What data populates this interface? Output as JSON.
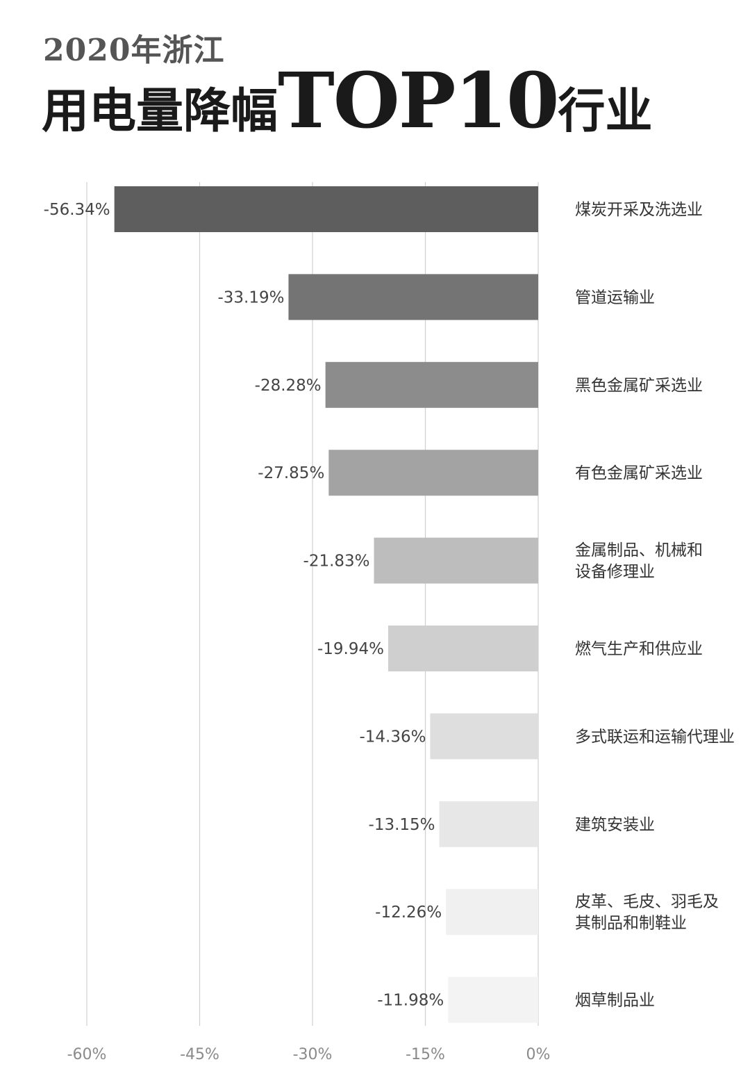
{
  "title": {
    "line1": "2020年浙江",
    "line2_cn_a": "用电量降幅",
    "line2_en": "TOP10",
    "line2_cn_b": "行业"
  },
  "colors": {
    "bars": [
      "#5e5e5e",
      "#747474",
      "#8c8c8c",
      "#a3a3a3",
      "#bdbdbd",
      "#cfcfcf",
      "#dedede",
      "#e7e7e7",
      "#f0f0f0",
      "#f3f3f3"
    ],
    "grid": "#cfcfcf",
    "tick_text": "#8a8a8a",
    "label_text": "#333333"
  },
  "chart_data": {
    "type": "bar",
    "orientation": "horizontal",
    "categories": [
      [
        "煤炭开采及洗选业"
      ],
      [
        "管道运输业"
      ],
      [
        "黑色金属矿采选业"
      ],
      [
        "有色金属矿采选业"
      ],
      [
        "金属制品、机械和",
        "设备修理业"
      ],
      [
        "燃气生产和供应业"
      ],
      [
        "多式联运和运输代理业"
      ],
      [
        "建筑安装业"
      ],
      [
        "皮革、毛皮、羽毛及",
        "其制品和制鞋业"
      ],
      [
        "烟草制品业"
      ]
    ],
    "values": [
      -56.34,
      -33.19,
      -28.28,
      -27.85,
      -21.83,
      -19.94,
      -14.36,
      -13.15,
      -12.26,
      -11.98
    ],
    "value_labels": [
      "-56.34%",
      "-33.19%",
      "-28.28%",
      "-27.85%",
      "-21.83%",
      "-19.94%",
      "-14.36%",
      "-13.15%",
      "-12.26%",
      "-11.98%"
    ],
    "xlim": [
      -60,
      0
    ],
    "xticks": [
      -60,
      -45,
      -30,
      -15,
      0
    ],
    "xtick_labels": [
      "-60%",
      "-45%",
      "-30%",
      "-15%",
      "0%"
    ],
    "grid": true
  }
}
